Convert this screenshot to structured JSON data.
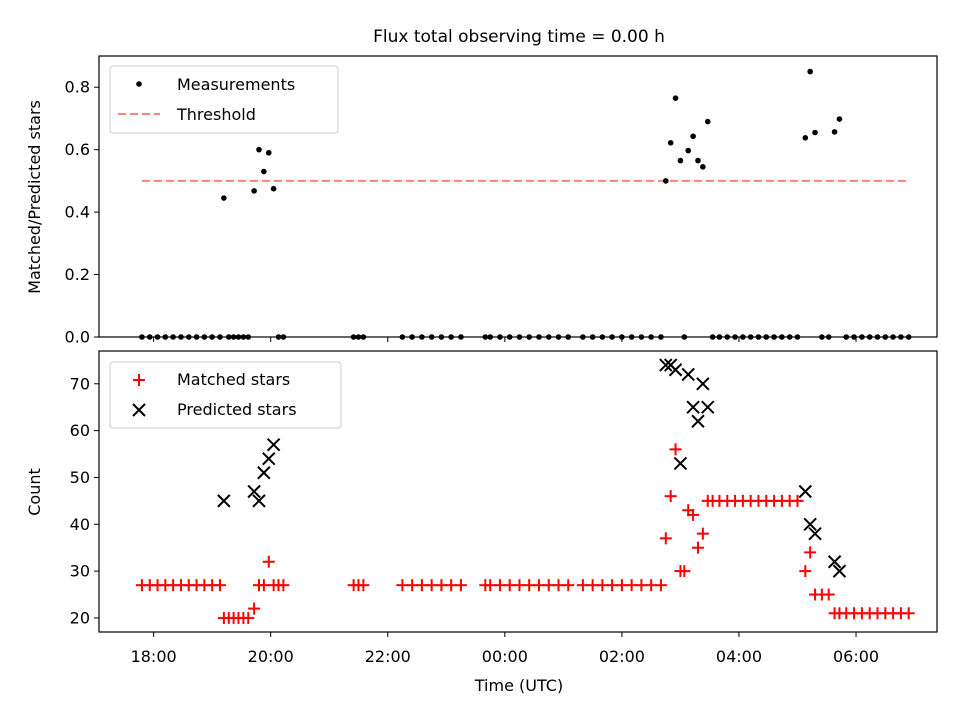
{
  "chart_data": [
    {
      "type": "scatter",
      "title": "Flux total observing time = 0.00 h",
      "xlabel": "",
      "ylabel": "Matched/Predicted stars",
      "ylim": [
        0,
        0.9
      ],
      "yticks": [
        0.0,
        0.2,
        0.4,
        0.6,
        0.8
      ],
      "ytick_labels": [
        "0.0",
        "0.2",
        "0.4",
        "0.6",
        "0.8"
      ],
      "x_axis": "time (UTC)",
      "legend_position": "top-left",
      "series": [
        {
          "name": "Measurements",
          "marker": "dot",
          "color": "#000000",
          "points": [
            [
              "2024-01-01T17:48",
              0.0
            ],
            [
              "2024-01-01T17:56",
              0.0
            ],
            [
              "2024-01-01T18:04",
              0.0
            ],
            [
              "2024-01-01T18:12",
              0.0
            ],
            [
              "2024-01-01T18:20",
              0.0
            ],
            [
              "2024-01-01T18:28",
              0.0
            ],
            [
              "2024-01-01T18:36",
              0.0
            ],
            [
              "2024-01-01T18:44",
              0.0
            ],
            [
              "2024-01-01T18:52",
              0.0
            ],
            [
              "2024-01-01T19:00",
              0.0
            ],
            [
              "2024-01-01T19:08",
              0.0
            ],
            [
              "2024-01-01T19:12",
              0.445
            ],
            [
              "2024-01-01T19:17",
              0.0
            ],
            [
              "2024-01-01T19:22",
              0.0
            ],
            [
              "2024-01-01T19:27",
              0.0
            ],
            [
              "2024-01-01T19:32",
              0.0
            ],
            [
              "2024-01-01T19:37",
              0.0
            ],
            [
              "2024-01-01T19:43",
              0.468
            ],
            [
              "2024-01-01T19:48",
              0.6
            ],
            [
              "2024-01-01T19:53",
              0.53
            ],
            [
              "2024-01-01T19:58",
              0.59
            ],
            [
              "2024-01-01T20:03",
              0.475
            ],
            [
              "2024-01-01T20:08",
              0.0
            ],
            [
              "2024-01-01T20:13",
              0.0
            ],
            [
              "2024-01-01T21:25",
              0.0
            ],
            [
              "2024-01-01T21:30",
              0.0
            ],
            [
              "2024-01-01T21:35",
              0.0
            ],
            [
              "2024-01-01T22:15",
              0.0
            ],
            [
              "2024-01-01T22:25",
              0.0
            ],
            [
              "2024-01-01T22:35",
              0.0
            ],
            [
              "2024-01-01T22:45",
              0.0
            ],
            [
              "2024-01-01T22:55",
              0.0
            ],
            [
              "2024-01-01T23:05",
              0.0
            ],
            [
              "2024-01-01T23:15",
              0.0
            ],
            [
              "2024-01-01T23:40",
              0.0
            ],
            [
              "2024-01-01T23:45",
              0.0
            ],
            [
              "2024-01-01T23:55",
              0.0
            ],
            [
              "2024-01-02T00:05",
              0.0
            ],
            [
              "2024-01-02T00:15",
              0.0
            ],
            [
              "2024-01-02T00:25",
              0.0
            ],
            [
              "2024-01-02T00:35",
              0.0
            ],
            [
              "2024-01-02T00:45",
              0.0
            ],
            [
              "2024-01-02T00:55",
              0.0
            ],
            [
              "2024-01-02T01:05",
              0.0
            ],
            [
              "2024-01-02T01:20",
              0.0
            ],
            [
              "2024-01-02T01:30",
              0.0
            ],
            [
              "2024-01-02T01:40",
              0.0
            ],
            [
              "2024-01-02T01:50",
              0.0
            ],
            [
              "2024-01-02T02:00",
              0.0
            ],
            [
              "2024-01-02T02:10",
              0.0
            ],
            [
              "2024-01-02T02:20",
              0.0
            ],
            [
              "2024-01-02T02:30",
              0.0
            ],
            [
              "2024-01-02T02:40",
              0.0
            ],
            [
              "2024-01-02T02:45",
              0.5
            ],
            [
              "2024-01-02T02:50",
              0.622
            ],
            [
              "2024-01-02T02:55",
              0.765
            ],
            [
              "2024-01-02T03:00",
              0.565
            ],
            [
              "2024-01-02T03:04",
              0.0
            ],
            [
              "2024-01-02T03:08",
              0.597
            ],
            [
              "2024-01-02T03:13",
              0.643
            ],
            [
              "2024-01-02T03:18",
              0.565
            ],
            [
              "2024-01-02T03:23",
              0.545
            ],
            [
              "2024-01-02T03:28",
              0.69
            ],
            [
              "2024-01-02T03:33",
              0.0
            ],
            [
              "2024-01-02T03:40",
              0.0
            ],
            [
              "2024-01-02T03:48",
              0.0
            ],
            [
              "2024-01-02T03:56",
              0.0
            ],
            [
              "2024-01-02T04:04",
              0.0
            ],
            [
              "2024-01-02T04:12",
              0.0
            ],
            [
              "2024-01-02T04:20",
              0.0
            ],
            [
              "2024-01-02T04:28",
              0.0
            ],
            [
              "2024-01-02T04:36",
              0.0
            ],
            [
              "2024-01-02T04:44",
              0.0
            ],
            [
              "2024-01-02T04:52",
              0.0
            ],
            [
              "2024-01-02T05:00",
              0.0
            ],
            [
              "2024-01-02T05:08",
              0.638
            ],
            [
              "2024-01-02T05:13",
              0.85
            ],
            [
              "2024-01-02T05:18",
              0.655
            ],
            [
              "2024-01-02T05:25",
              0.0
            ],
            [
              "2024-01-02T05:32",
              0.0
            ],
            [
              "2024-01-02T05:38",
              0.657
            ],
            [
              "2024-01-02T05:43",
              0.698
            ],
            [
              "2024-01-02T05:50",
              0.0
            ],
            [
              "2024-01-02T05:58",
              0.0
            ],
            [
              "2024-01-02T06:06",
              0.0
            ],
            [
              "2024-01-02T06:14",
              0.0
            ],
            [
              "2024-01-02T06:22",
              0.0
            ],
            [
              "2024-01-02T06:30",
              0.0
            ],
            [
              "2024-01-02T06:38",
              0.0
            ],
            [
              "2024-01-02T06:46",
              0.0
            ],
            [
              "2024-01-02T06:54",
              0.0
            ]
          ]
        },
        {
          "name": "Threshold",
          "marker": "dashed-line",
          "color": "#ff7f7f",
          "points": [
            [
              "2024-01-01T17:48",
              0.5
            ],
            [
              "2024-01-02T06:54",
              0.5
            ]
          ]
        }
      ]
    },
    {
      "type": "scatter",
      "title": "",
      "xlabel": "Time (UTC)",
      "ylabel": "Count",
      "ylim": [
        17,
        77
      ],
      "yticks": [
        20,
        30,
        40,
        50,
        60,
        70
      ],
      "ytick_labels": [
        "20",
        "30",
        "40",
        "50",
        "60",
        "70"
      ],
      "x_axis": "time (UTC)",
      "x_range": [
        "2024-01-01T17:04",
        "2024-01-02T07:23"
      ],
      "xticks": [
        "2024-01-01T18:00",
        "2024-01-01T20:00",
        "2024-01-01T22:00",
        "2024-01-02T00:00",
        "2024-01-02T02:00",
        "2024-01-02T04:00",
        "2024-01-02T06:00"
      ],
      "xtick_labels": [
        "18:00",
        "20:00",
        "22:00",
        "00:00",
        "02:00",
        "04:00",
        "06:00"
      ],
      "legend_position": "top-left",
      "series": [
        {
          "name": "Matched stars",
          "marker": "plus",
          "color": "#ff0000",
          "points": [
            [
              "2024-01-01T17:48",
              27
            ],
            [
              "2024-01-01T17:56",
              27
            ],
            [
              "2024-01-01T18:04",
              27
            ],
            [
              "2024-01-01T18:12",
              27
            ],
            [
              "2024-01-01T18:20",
              27
            ],
            [
              "2024-01-01T18:28",
              27
            ],
            [
              "2024-01-01T18:36",
              27
            ],
            [
              "2024-01-01T18:44",
              27
            ],
            [
              "2024-01-01T18:52",
              27
            ],
            [
              "2024-01-01T19:00",
              27
            ],
            [
              "2024-01-01T19:08",
              27
            ],
            [
              "2024-01-01T19:12",
              20
            ],
            [
              "2024-01-01T19:17",
              20
            ],
            [
              "2024-01-01T19:22",
              20
            ],
            [
              "2024-01-01T19:27",
              20
            ],
            [
              "2024-01-01T19:32",
              20
            ],
            [
              "2024-01-01T19:37",
              20
            ],
            [
              "2024-01-01T19:43",
              22
            ],
            [
              "2024-01-01T19:48",
              27
            ],
            [
              "2024-01-01T19:53",
              27
            ],
            [
              "2024-01-01T19:58",
              32
            ],
            [
              "2024-01-01T20:03",
              27
            ],
            [
              "2024-01-01T20:08",
              27
            ],
            [
              "2024-01-01T20:13",
              27
            ],
            [
              "2024-01-01T21:25",
              27
            ],
            [
              "2024-01-01T21:30",
              27
            ],
            [
              "2024-01-01T21:35",
              27
            ],
            [
              "2024-01-01T22:15",
              27
            ],
            [
              "2024-01-01T22:25",
              27
            ],
            [
              "2024-01-01T22:35",
              27
            ],
            [
              "2024-01-01T22:45",
              27
            ],
            [
              "2024-01-01T22:55",
              27
            ],
            [
              "2024-01-01T23:05",
              27
            ],
            [
              "2024-01-01T23:15",
              27
            ],
            [
              "2024-01-01T23:40",
              27
            ],
            [
              "2024-01-01T23:45",
              27
            ],
            [
              "2024-01-01T23:55",
              27
            ],
            [
              "2024-01-02T00:05",
              27
            ],
            [
              "2024-01-02T00:15",
              27
            ],
            [
              "2024-01-02T00:25",
              27
            ],
            [
              "2024-01-02T00:35",
              27
            ],
            [
              "2024-01-02T00:45",
              27
            ],
            [
              "2024-01-02T00:55",
              27
            ],
            [
              "2024-01-02T01:05",
              27
            ],
            [
              "2024-01-02T01:20",
              27
            ],
            [
              "2024-01-02T01:30",
              27
            ],
            [
              "2024-01-02T01:40",
              27
            ],
            [
              "2024-01-02T01:50",
              27
            ],
            [
              "2024-01-02T02:00",
              27
            ],
            [
              "2024-01-02T02:10",
              27
            ],
            [
              "2024-01-02T02:20",
              27
            ],
            [
              "2024-01-02T02:30",
              27
            ],
            [
              "2024-01-02T02:40",
              27
            ],
            [
              "2024-01-02T02:45",
              37
            ],
            [
              "2024-01-02T02:50",
              46
            ],
            [
              "2024-01-02T02:55",
              56
            ],
            [
              "2024-01-02T03:00",
              30
            ],
            [
              "2024-01-02T03:04",
              30
            ],
            [
              "2024-01-02T03:08",
              43
            ],
            [
              "2024-01-02T03:13",
              42
            ],
            [
              "2024-01-02T03:18",
              35
            ],
            [
              "2024-01-02T03:23",
              38
            ],
            [
              "2024-01-02T03:28",
              45
            ],
            [
              "2024-01-02T03:33",
              45
            ],
            [
              "2024-01-02T03:40",
              45
            ],
            [
              "2024-01-02T03:48",
              45
            ],
            [
              "2024-01-02T03:56",
              45
            ],
            [
              "2024-01-02T04:04",
              45
            ],
            [
              "2024-01-02T04:12",
              45
            ],
            [
              "2024-01-02T04:20",
              45
            ],
            [
              "2024-01-02T04:28",
              45
            ],
            [
              "2024-01-02T04:36",
              45
            ],
            [
              "2024-01-02T04:44",
              45
            ],
            [
              "2024-01-02T04:52",
              45
            ],
            [
              "2024-01-02T05:00",
              45
            ],
            [
              "2024-01-02T05:08",
              30
            ],
            [
              "2024-01-02T05:13",
              34
            ],
            [
              "2024-01-02T05:18",
              25
            ],
            [
              "2024-01-02T05:25",
              25
            ],
            [
              "2024-01-02T05:32",
              25
            ],
            [
              "2024-01-02T05:38",
              21
            ],
            [
              "2024-01-02T05:43",
              21
            ],
            [
              "2024-01-02T05:50",
              21
            ],
            [
              "2024-01-02T05:58",
              21
            ],
            [
              "2024-01-02T06:06",
              21
            ],
            [
              "2024-01-02T06:14",
              21
            ],
            [
              "2024-01-02T06:22",
              21
            ],
            [
              "2024-01-02T06:30",
              21
            ],
            [
              "2024-01-02T06:38",
              21
            ],
            [
              "2024-01-02T06:46",
              21
            ],
            [
              "2024-01-02T06:54",
              21
            ]
          ]
        },
        {
          "name": "Predicted stars",
          "marker": "x",
          "color": "#000000",
          "points": [
            [
              "2024-01-01T19:12",
              45
            ],
            [
              "2024-01-01T19:43",
              47
            ],
            [
              "2024-01-01T19:48",
              45
            ],
            [
              "2024-01-01T19:53",
              51
            ],
            [
              "2024-01-01T19:58",
              54
            ],
            [
              "2024-01-01T20:03",
              57
            ],
            [
              "2024-01-02T02:45",
              74
            ],
            [
              "2024-01-02T02:50",
              74
            ],
            [
              "2024-01-02T02:55",
              73
            ],
            [
              "2024-01-02T03:00",
              53
            ],
            [
              "2024-01-02T03:08",
              72
            ],
            [
              "2024-01-02T03:13",
              65
            ],
            [
              "2024-01-02T03:18",
              62
            ],
            [
              "2024-01-02T03:23",
              70
            ],
            [
              "2024-01-02T03:28",
              65
            ],
            [
              "2024-01-02T05:08",
              47
            ],
            [
              "2024-01-02T05:13",
              40
            ],
            [
              "2024-01-02T05:18",
              38
            ],
            [
              "2024-01-02T05:38",
              32
            ],
            [
              "2024-01-02T05:43",
              30
            ]
          ]
        }
      ]
    }
  ]
}
